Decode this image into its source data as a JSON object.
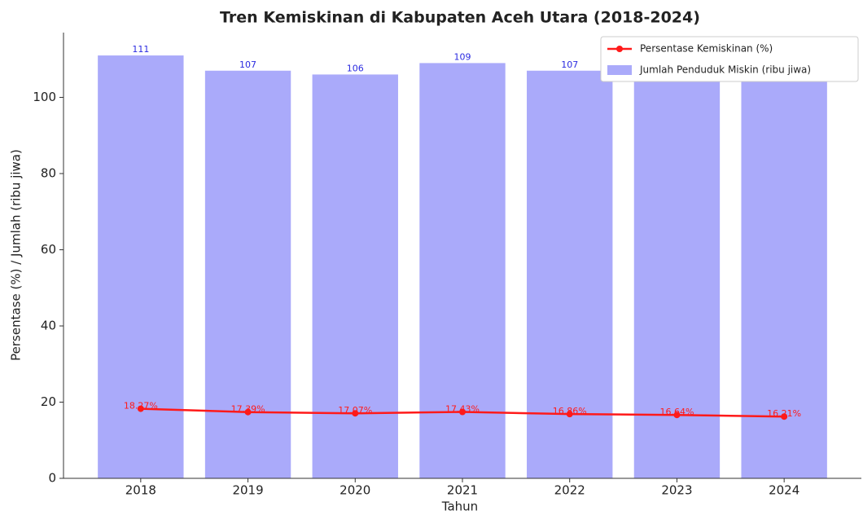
{
  "chart_data": {
    "type": "bar_line",
    "title": "Tren Kemiskinan di Kabupaten Aceh Utara (2018-2024)",
    "xlabel": "Tahun",
    "ylabel": "Persentase (%) / Jumlah (ribu jiwa)",
    "categories": [
      "2018",
      "2019",
      "2020",
      "2021",
      "2022",
      "2023",
      "2024"
    ],
    "series": [
      {
        "name": "Jumlah Penduduk Miskin (ribu jiwa)",
        "type": "bar",
        "color": "#aaaafa",
        "label_color": "#2a2ae0",
        "values": [
          111,
          107,
          106,
          109,
          107,
          106,
          105
        ]
      },
      {
        "name": "Persentase Kemiskinan (%)",
        "type": "line",
        "color": "#ff1a1a",
        "label_color": "#ff1a1a",
        "values": [
          18.27,
          17.39,
          17.07,
          17.43,
          16.86,
          16.64,
          16.21
        ],
        "value_labels": [
          "18.27%",
          "17.39%",
          "17.07%",
          "17.43%",
          "16.86%",
          "16.64%",
          "16.21%"
        ]
      }
    ],
    "ylim": [
      0,
      117
    ],
    "yticks": [
      0,
      20,
      40,
      60,
      80,
      100
    ],
    "legend": "upper right"
  }
}
